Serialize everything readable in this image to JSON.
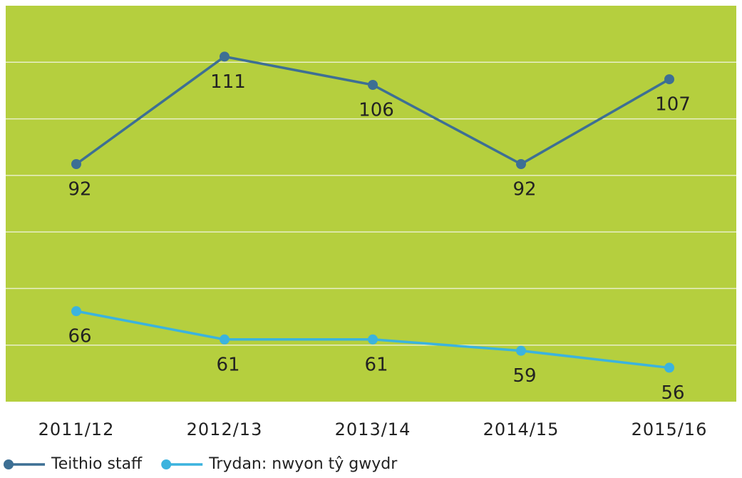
{
  "chart_data": {
    "type": "line",
    "categories": [
      "2011/12",
      "2012/13",
      "2013/14",
      "2014/15",
      "2015/16"
    ],
    "series": [
      {
        "name": "Teithio staff",
        "color": "#3d6f94",
        "values": [
          92,
          111,
          106,
          92,
          107
        ]
      },
      {
        "name": "Trydan: nwyon tŷ gwydr",
        "color": "#3bb3de",
        "values": [
          66,
          61,
          61,
          59,
          56
        ]
      }
    ],
    "ylim": [
      50,
      120
    ],
    "yticks": [
      60,
      70,
      80,
      90,
      100,
      110
    ],
    "grid": true,
    "background": "#b5cf3e"
  }
}
